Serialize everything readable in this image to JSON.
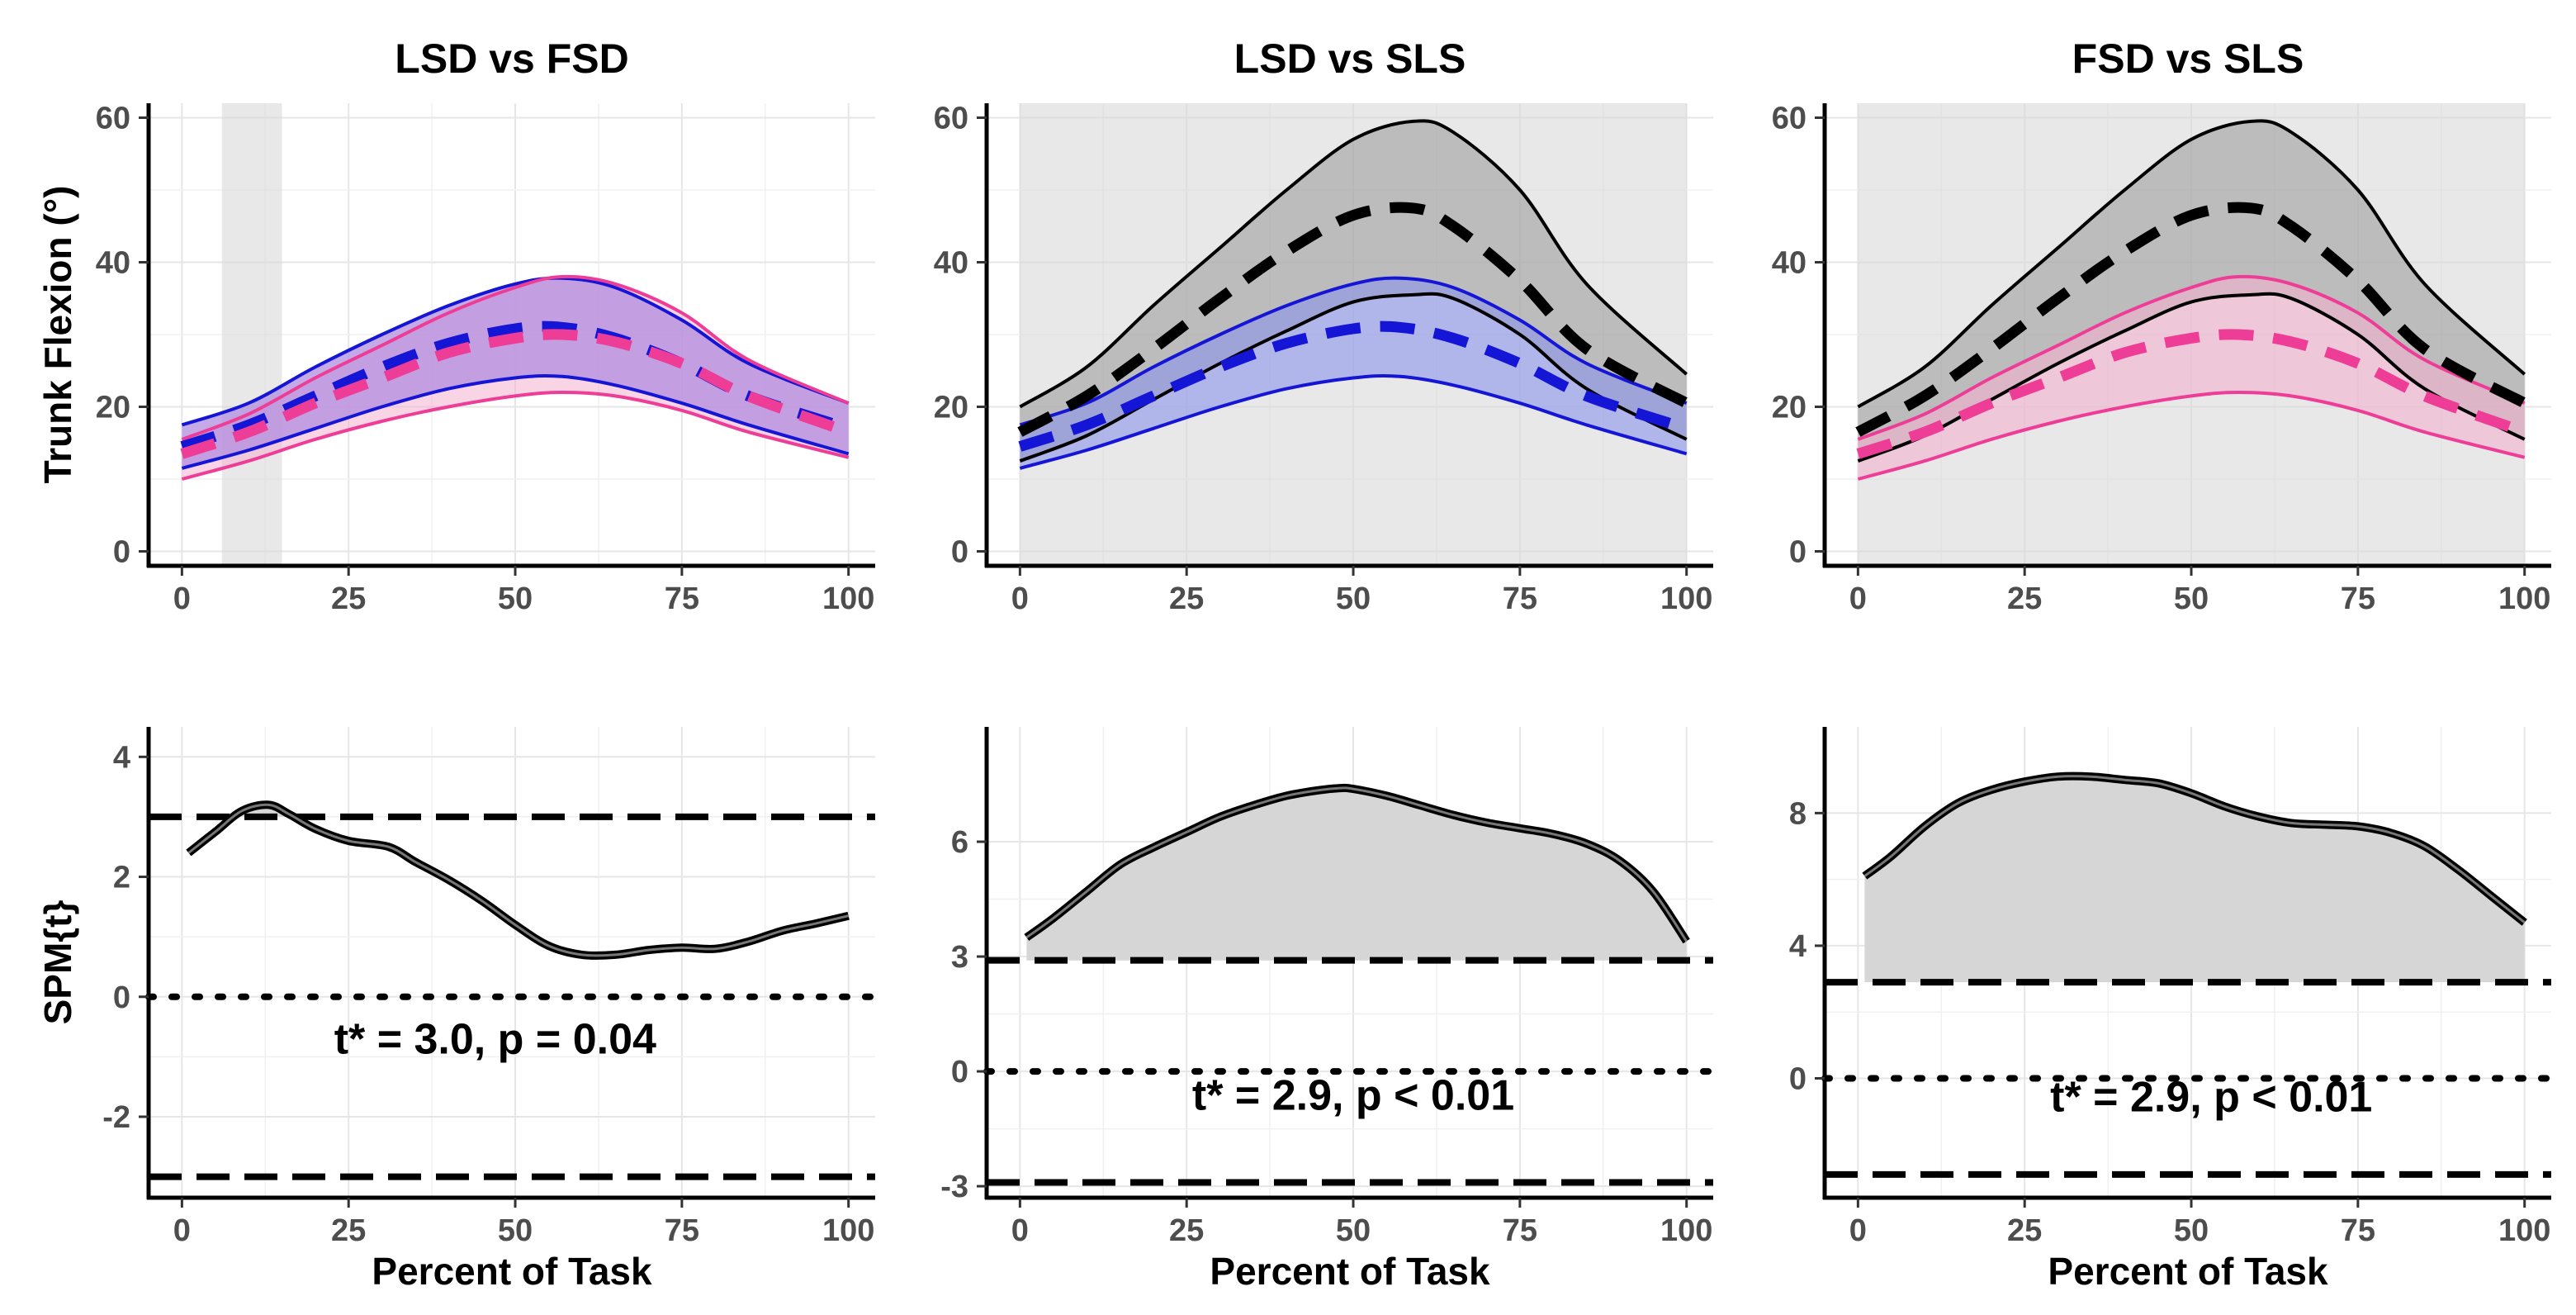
{
  "chart_data": {
    "type": "line",
    "xlabel": "Percent of Task",
    "colors": {
      "LSD": "#1515d6",
      "FSD": "#ee3d96",
      "SLS": "#000000",
      "LSD_fill": "#8a94ea",
      "FSD_fill": "#f2b1cf",
      "SLS_fill": "#9e9e9e",
      "LSD_FSD_fill": "#b28ee0",
      "sig_region": "#d9d9d9",
      "spm_fill": "#d6d6d6"
    },
    "curves": {
      "LSD": {
        "x": [
          0,
          10,
          20,
          30,
          40,
          50,
          57,
          65,
          75,
          85,
          100
        ],
        "mean": [
          14.5,
          17.5,
          21.5,
          25.5,
          28.8,
          30.8,
          31.0,
          29.5,
          26.0,
          21.5,
          17.0
        ],
        "upper": [
          17.5,
          20.5,
          25.5,
          30.0,
          34.0,
          37.0,
          37.8,
          36.5,
          32.0,
          26.0,
          20.5
        ],
        "lower": [
          11.5,
          14.0,
          17.0,
          20.0,
          22.5,
          24.0,
          24.2,
          23.0,
          20.5,
          17.5,
          13.5
        ]
      },
      "FSD": {
        "x": [
          0,
          10,
          20,
          30,
          40,
          50,
          57,
          65,
          75,
          85,
          100
        ],
        "mean": [
          13.5,
          16.5,
          20.5,
          24.0,
          27.5,
          29.5,
          30.0,
          29.0,
          26.0,
          21.5,
          16.5
        ],
        "upper": [
          15.5,
          19.0,
          24.0,
          28.5,
          33.0,
          36.5,
          38.0,
          37.0,
          33.0,
          26.5,
          20.5
        ],
        "lower": [
          10.0,
          12.5,
          15.5,
          18.0,
          20.0,
          21.5,
          22.0,
          21.5,
          19.5,
          16.5,
          13.0
        ]
      },
      "SLS": {
        "x": [
          0,
          10,
          20,
          30,
          40,
          50,
          59,
          65,
          75,
          85,
          100
        ],
        "mean": [
          16.5,
          21.5,
          28.0,
          35.0,
          41.5,
          46.5,
          47.5,
          45.0,
          37.5,
          28.0,
          20.5
        ],
        "upper": [
          20.0,
          25.5,
          34.0,
          42.0,
          50.0,
          57.0,
          59.5,
          58.0,
          50.0,
          37.0,
          24.5
        ],
        "lower": [
          12.5,
          16.0,
          21.0,
          26.0,
          30.5,
          34.5,
          35.5,
          35.0,
          30.0,
          22.5,
          15.5
        ]
      }
    },
    "panels": [
      {
        "title": "LSD vs FSD",
        "ylabel": "Trunk Flexion (°)",
        "yticks": [
          0,
          20,
          40,
          60
        ],
        "xticks": [
          0,
          25,
          50,
          75,
          100
        ],
        "ylim": [
          -2,
          62
        ],
        "xlim": [
          -5,
          104
        ],
        "significant_region": [
          6,
          15
        ],
        "series": [
          "LSD",
          "FSD"
        ],
        "overlap_fill": "LSD_FSD_fill"
      },
      {
        "title": "LSD vs SLS",
        "ylabel": "",
        "yticks": [
          0,
          20,
          40,
          60
        ],
        "xticks": [
          0,
          25,
          50,
          75,
          100
        ],
        "ylim": [
          -2,
          62
        ],
        "xlim": [
          -5,
          104
        ],
        "significant_region": [
          0,
          100
        ],
        "series": [
          "SLS",
          "LSD"
        ]
      },
      {
        "title": "FSD vs SLS",
        "ylabel": "",
        "yticks": [
          0,
          20,
          40,
          60
        ],
        "xticks": [
          0,
          25,
          50,
          75,
          100
        ],
        "ylim": [
          -2,
          62
        ],
        "xlim": [
          -5,
          104
        ],
        "significant_region": [
          0,
          100
        ],
        "series": [
          "SLS",
          "FSD"
        ]
      }
    ],
    "spm_panels": [
      {
        "ylabel": "SPM{t}",
        "yticks": [
          -2,
          0,
          2,
          4
        ],
        "ytick_labels": [
          "-2",
          "0",
          "2",
          "4"
        ],
        "xticks": [
          0,
          25,
          50,
          75,
          100
        ],
        "ylim": [
          -3.35,
          4.5
        ],
        "xlim": [
          -5,
          104
        ],
        "threshold": 3.0,
        "annotation": "t* = 3.0, p = 0.04",
        "annotation_pos": [
          47,
          -0.95
        ],
        "x": [
          1,
          5,
          9,
          13,
          16,
          20,
          25,
          31,
          35,
          40,
          45,
          50,
          55,
          60,
          65,
          70,
          75,
          80,
          85,
          90,
          95,
          100
        ],
        "t": [
          2.4,
          2.75,
          3.1,
          3.2,
          3.05,
          2.8,
          2.6,
          2.5,
          2.25,
          1.95,
          1.6,
          1.2,
          0.85,
          0.7,
          0.7,
          0.78,
          0.82,
          0.8,
          0.92,
          1.1,
          1.22,
          1.35
        ]
      },
      {
        "ylabel": "",
        "yticks": [
          -3,
          0,
          3,
          6
        ],
        "ytick_labels": [
          "-3",
          "0",
          "3",
          "6"
        ],
        "xticks": [
          0,
          25,
          50,
          75,
          100
        ],
        "ylim": [
          -3.3,
          9.0
        ],
        "xlim": [
          -5,
          104
        ],
        "threshold": 2.9,
        "annotation": "t* = 2.9, p < 0.01",
        "annotation_pos": [
          50,
          -1.0
        ],
        "x": [
          1,
          5,
          10,
          15,
          20,
          25,
          30,
          35,
          40,
          45,
          48,
          50,
          55,
          60,
          65,
          70,
          75,
          80,
          85,
          90,
          95,
          100
        ],
        "t": [
          3.5,
          4.0,
          4.7,
          5.4,
          5.85,
          6.25,
          6.65,
          6.95,
          7.2,
          7.35,
          7.4,
          7.38,
          7.2,
          6.95,
          6.7,
          6.5,
          6.35,
          6.2,
          5.95,
          5.5,
          4.7,
          3.4
        ]
      },
      {
        "ylabel": "",
        "yticks": [
          0,
          4,
          8
        ],
        "ytick_labels": [
          "0",
          "4",
          "8"
        ],
        "xticks": [
          0,
          25,
          50,
          75,
          100
        ],
        "ylim": [
          -3.6,
          10.6
        ],
        "xlim": [
          -5,
          104
        ],
        "threshold": 2.9,
        "annotation": "t* = 2.9, p < 0.01",
        "annotation_pos": [
          53,
          -1.0
        ],
        "x": [
          1,
          5,
          10,
          15,
          20,
          25,
          30,
          35,
          40,
          45,
          50,
          55,
          60,
          65,
          70,
          75,
          80,
          85,
          90,
          95,
          100
        ],
        "t": [
          6.1,
          6.7,
          7.6,
          8.3,
          8.7,
          8.95,
          9.1,
          9.1,
          9.0,
          8.9,
          8.6,
          8.2,
          7.9,
          7.7,
          7.65,
          7.6,
          7.4,
          7.0,
          6.3,
          5.5,
          4.7
        ]
      }
    ]
  }
}
